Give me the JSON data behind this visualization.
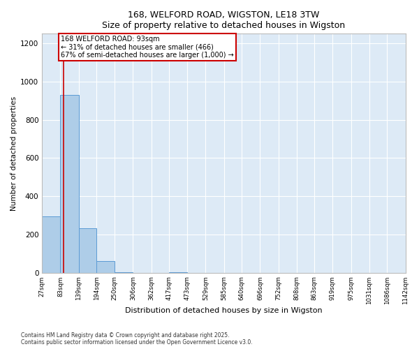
{
  "title_line1": "168, WELFORD ROAD, WIGSTON, LE18 3TW",
  "title_line2": "Size of property relative to detached houses in Wigston",
  "xlabel": "Distribution of detached houses by size in Wigston",
  "ylabel": "Number of detached properties",
  "footnote_line1": "Contains HM Land Registry data © Crown copyright and database right 2025.",
  "footnote_line2": "Contains public sector information licensed under the Open Government Licence v3.0.",
  "bar_edges": [
    27,
    83,
    139,
    194,
    250,
    306,
    362,
    417,
    473,
    529,
    585,
    640,
    696,
    752,
    808,
    863,
    919,
    975,
    1031,
    1086,
    1142
  ],
  "bar_heights": [
    295,
    930,
    232,
    62,
    2,
    0,
    0,
    2,
    0,
    0,
    0,
    0,
    0,
    0,
    0,
    0,
    0,
    0,
    0,
    0
  ],
  "bar_color": "#aecde8",
  "bar_edge_color": "#5b9bd5",
  "background_color": "#ddeaf6",
  "grid_color": "#ffffff",
  "vline_x": 93,
  "vline_color": "#cc0000",
  "ylim": [
    0,
    1250
  ],
  "yticks": [
    0,
    200,
    400,
    600,
    800,
    1000,
    1200
  ],
  "annotation_text": "168 WELFORD ROAD: 93sqm\n← 31% of detached houses are smaller (466)\n67% of semi-detached houses are larger (1,000) →",
  "annotation_box_color": "#ffffff",
  "annotation_border_color": "#cc0000",
  "tick_labels": [
    "27sqm",
    "83sqm",
    "139sqm",
    "194sqm",
    "250sqm",
    "306sqm",
    "362sqm",
    "417sqm",
    "473sqm",
    "529sqm",
    "585sqm",
    "640sqm",
    "696sqm",
    "752sqm",
    "808sqm",
    "863sqm",
    "919sqm",
    "975sqm",
    "1031sqm",
    "1086sqm",
    "1142sqm"
  ]
}
